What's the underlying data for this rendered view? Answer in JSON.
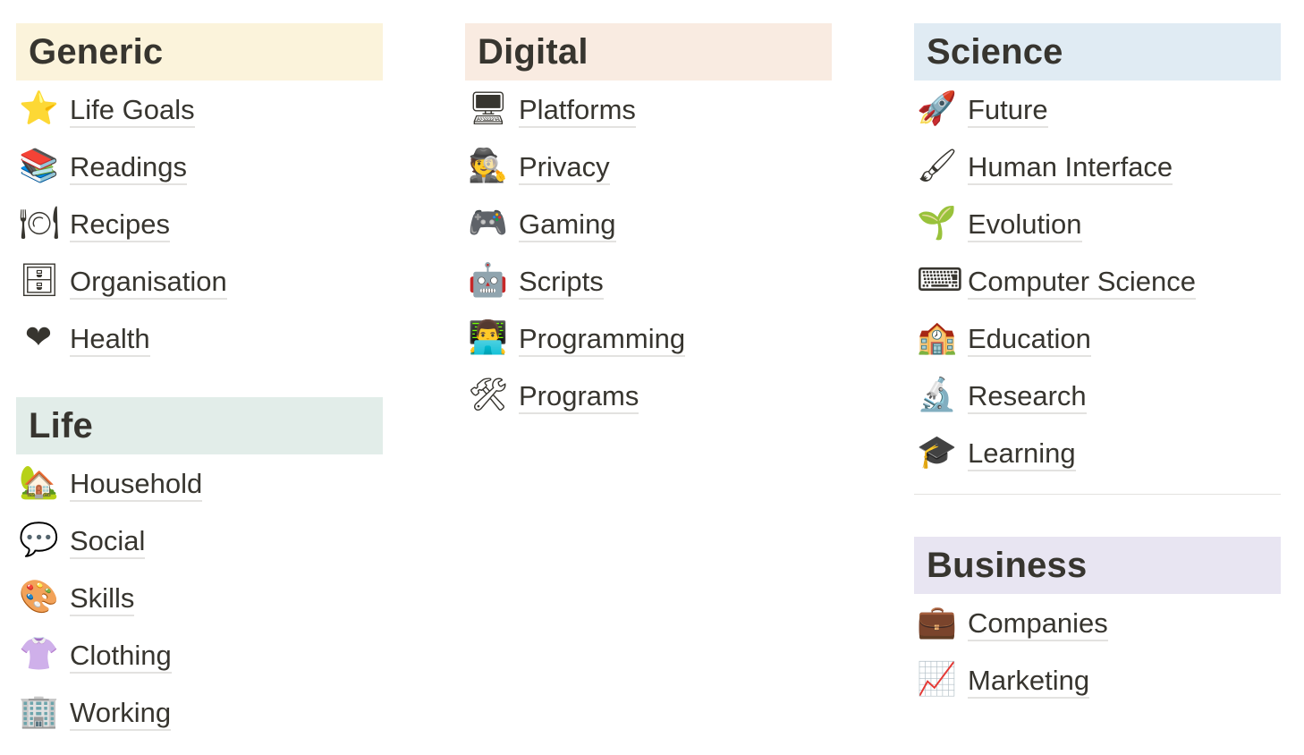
{
  "sections": {
    "generic": {
      "title": "Generic",
      "color": "#fbf3db",
      "items": [
        {
          "icon": "⭐",
          "icon_name": "glowing-star-icon",
          "label": "Life Goals"
        },
        {
          "icon": "📚",
          "icon_name": "books-icon",
          "label": "Readings"
        },
        {
          "icon": "🍽",
          "icon_name": "plate-with-cutlery-icon",
          "label": "Recipes"
        },
        {
          "icon": "🗄",
          "icon_name": "file-cabinet-icon",
          "label": "Organisation"
        },
        {
          "icon": "❤",
          "icon_name": "red-heart-icon",
          "label": "Health"
        }
      ]
    },
    "life": {
      "title": "Life",
      "color": "#e2ede9",
      "items": [
        {
          "icon": "🏡",
          "icon_name": "house-with-garden-icon",
          "label": "Household"
        },
        {
          "icon": "💬",
          "icon_name": "speech-bubble-icon",
          "label": "Social"
        },
        {
          "icon": "🎨",
          "icon_name": "artist-palette-icon",
          "label": "Skills"
        },
        {
          "icon": "👚",
          "icon_name": "womans-clothes-icon",
          "label": "Clothing"
        },
        {
          "icon": "🏢",
          "icon_name": "office-building-icon",
          "label": "Working"
        }
      ]
    },
    "digital": {
      "title": "Digital",
      "color": "#f9ebe1",
      "items": [
        {
          "icon": "🖥",
          "icon_name": "desktop-computer-icon",
          "label": "Platforms"
        },
        {
          "icon": "🕵",
          "icon_name": "detective-icon",
          "label": "Privacy"
        },
        {
          "icon": "🎮",
          "icon_name": "video-game-controller-icon",
          "label": "Gaming"
        },
        {
          "icon": "🤖",
          "icon_name": "robot-icon",
          "label": "Scripts"
        },
        {
          "icon": "👨‍💻",
          "icon_name": "technologist-icon",
          "label": "Programming"
        },
        {
          "icon": "🛠",
          "icon_name": "hammer-and-wrench-icon",
          "label": "Programs"
        }
      ]
    },
    "science": {
      "title": "Science",
      "color": "#e0ebf3",
      "items": [
        {
          "icon": "🚀",
          "icon_name": "rocket-icon",
          "label": "Future"
        },
        {
          "icon": "🖌",
          "icon_name": "paintbrush-icon",
          "label": "Human Interface"
        },
        {
          "icon": "🌱",
          "icon_name": "seedling-icon",
          "label": "Evolution"
        },
        {
          "icon": "⌨",
          "icon_name": "keyboard-icon",
          "label": "Computer Science"
        },
        {
          "icon": "🏫",
          "icon_name": "school-icon",
          "label": "Education"
        },
        {
          "icon": "🔬",
          "icon_name": "microscope-icon",
          "label": "Research"
        },
        {
          "icon": "🎓",
          "icon_name": "graduation-cap-icon",
          "label": "Learning"
        }
      ]
    },
    "business": {
      "title": "Business",
      "color": "#e8e5f2",
      "items": [
        {
          "icon": "💼",
          "icon_name": "briefcase-icon",
          "label": "Companies"
        },
        {
          "icon": "📈",
          "icon_name": "chart-increasing-icon",
          "label": "Marketing"
        }
      ]
    }
  }
}
